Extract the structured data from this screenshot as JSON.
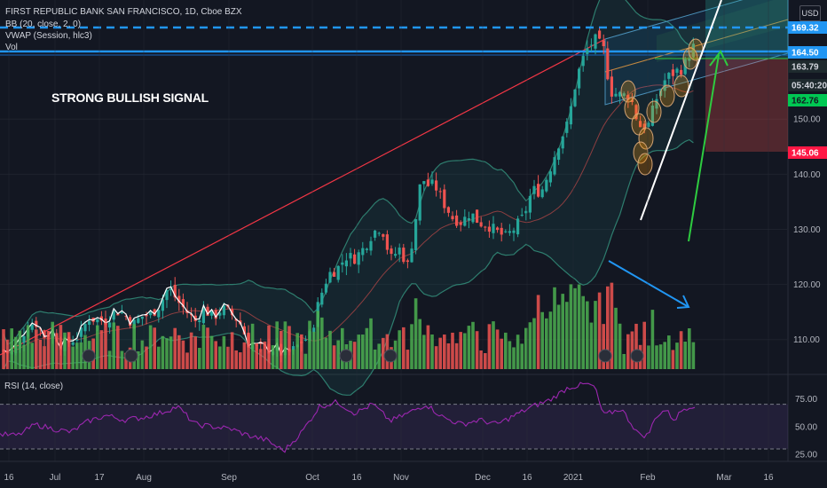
{
  "header": {
    "title": "FIRST REPUBLIC BANK SAN FRANCISCO, 1D, Cboe BZX",
    "bb": "BB (20, close, 2, 0)",
    "vwap": "VWAP (Session, hlc3)",
    "vol": "Vol",
    "currency": "USD"
  },
  "annotation": "STRONG BULLISH SIGNAL",
  "rsi_title": "RSI (14, close)",
  "colors": {
    "background": "#131722",
    "up": "#26a69a",
    "down": "#ef5350",
    "vol_up": "#4caf50",
    "vol_down": "#ef5350",
    "bb_band": "#2e7d6e",
    "rsi": "#9c27b0",
    "blue_line": "#2196f3",
    "green_arrow": "#2ecc40",
    "red_line": "#f23645"
  },
  "chart_data": [
    {
      "type": "candlestick",
      "y_ticks": [
        "110.00",
        "120.00",
        "130.00",
        "140.00",
        "150.00"
      ],
      "ylim": [
        104,
        170
      ],
      "x_labels": [
        "16",
        "Jul",
        "17",
        "Aug",
        "Sep",
        "Oct",
        "16",
        "Nov",
        "Dec",
        "16",
        "2021",
        "Feb",
        "Mar",
        "16"
      ],
      "price_tags": [
        {
          "value": "169.32",
          "style": "blue"
        },
        {
          "value": "164.50",
          "style": "blue"
        },
        {
          "value": "163.79",
          "style": "dark"
        },
        {
          "value": "05:40:20",
          "style": "dark"
        },
        {
          "value": "162.76",
          "style": "green"
        },
        {
          "value": "145.06",
          "style": "red"
        }
      ],
      "closes": [
        {
          "x": 0,
          "y": 108.0
        },
        {
          "x": 10,
          "y": 107.5
        },
        {
          "x": 20,
          "y": 108.8
        },
        {
          "x": 30,
          "y": 112.4
        },
        {
          "x": 40,
          "y": 113.2
        },
        {
          "x": 50,
          "y": 110.6
        },
        {
          "x": 60,
          "y": 111.4
        },
        {
          "x": 70,
          "y": 108.7
        },
        {
          "x": 80,
          "y": 109.8
        },
        {
          "x": 90,
          "y": 110.8
        },
        {
          "x": 100,
          "y": 114.0
        },
        {
          "x": 110,
          "y": 113.5
        },
        {
          "x": 120,
          "y": 113.5
        },
        {
          "x": 130,
          "y": 115.3
        },
        {
          "x": 140,
          "y": 114.7
        },
        {
          "x": 150,
          "y": 112.8
        },
        {
          "x": 160,
          "y": 114.2
        },
        {
          "x": 170,
          "y": 114.5
        },
        {
          "x": 180,
          "y": 116.3
        },
        {
          "x": 190,
          "y": 119.6
        },
        {
          "x": 200,
          "y": 117.0
        },
        {
          "x": 210,
          "y": 115.1
        },
        {
          "x": 220,
          "y": 113.3
        },
        {
          "x": 230,
          "y": 115.7
        },
        {
          "x": 240,
          "y": 113.9
        },
        {
          "x": 250,
          "y": 115.7
        },
        {
          "x": 260,
          "y": 114.7
        },
        {
          "x": 270,
          "y": 113.2
        },
        {
          "x": 280,
          "y": 109.4
        },
        {
          "x": 290,
          "y": 108.4
        },
        {
          "x": 300,
          "y": 108.2
        },
        {
          "x": 310,
          "y": 108.4
        },
        {
          "x": 320,
          "y": 107.1
        },
        {
          "x": 330,
          "y": 108.0
        },
        {
          "x": 340,
          "y": 109.6
        },
        {
          "x": 350,
          "y": 110.8
        },
        {
          "x": 360,
          "y": 117.3
        },
        {
          "x": 370,
          "y": 121.9
        },
        {
          "x": 380,
          "y": 122.8
        },
        {
          "x": 390,
          "y": 125.1
        },
        {
          "x": 400,
          "y": 124.8
        },
        {
          "x": 410,
          "y": 126.6
        },
        {
          "x": 420,
          "y": 129.4
        },
        {
          "x": 430,
          "y": 130.6
        },
        {
          "x": 440,
          "y": 124.5
        },
        {
          "x": 450,
          "y": 126.5
        },
        {
          "x": 460,
          "y": 123.3
        },
        {
          "x": 470,
          "y": 133.5
        },
        {
          "x": 475,
          "y": 140.0
        },
        {
          "x": 480,
          "y": 138.0
        },
        {
          "x": 490,
          "y": 138.0
        },
        {
          "x": 500,
          "y": 134.8
        },
        {
          "x": 510,
          "y": 132.1
        },
        {
          "x": 520,
          "y": 131.3
        },
        {
          "x": 530,
          "y": 133.1
        },
        {
          "x": 540,
          "y": 131.2
        },
        {
          "x": 550,
          "y": 130.8
        },
        {
          "x": 560,
          "y": 129.5
        },
        {
          "x": 570,
          "y": 128.6
        },
        {
          "x": 580,
          "y": 130.2
        },
        {
          "x": 590,
          "y": 132.3
        },
        {
          "x": 600,
          "y": 137.2
        },
        {
          "x": 610,
          "y": 136.8
        },
        {
          "x": 620,
          "y": 141.1
        },
        {
          "x": 630,
          "y": 145.8
        },
        {
          "x": 640,
          "y": 149.2
        },
        {
          "x": 650,
          "y": 157.6
        },
        {
          "x": 660,
          "y": 162.3
        },
        {
          "x": 670,
          "y": 164.5
        },
        {
          "x": 680,
          "y": 162.8
        },
        {
          "x": 688,
          "y": 155.0
        },
        {
          "x": 700,
          "y": 154.3
        },
        {
          "x": 710,
          "y": 154.3
        },
        {
          "x": 720,
          "y": 148.8
        },
        {
          "x": 730,
          "y": 148.6
        },
        {
          "x": 740,
          "y": 153.8
        },
        {
          "x": 750,
          "y": 157.3
        },
        {
          "x": 760,
          "y": 158.5
        },
        {
          "x": 770,
          "y": 159.3
        },
        {
          "x": 780,
          "y": 162.8
        },
        {
          "x": 785,
          "y": 163.8
        }
      ]
    },
    {
      "type": "line",
      "series": [
        {
          "name": "RSI (14, close)"
        }
      ],
      "y_ticks": [
        "75.00",
        "50.00",
        "25.00"
      ],
      "ylim": [
        22,
        92
      ],
      "levels": [
        70,
        30
      ],
      "values": [
        {
          "x": 0,
          "y": 43
        },
        {
          "x": 20,
          "y": 42
        },
        {
          "x": 40,
          "y": 52
        },
        {
          "x": 60,
          "y": 48
        },
        {
          "x": 80,
          "y": 45
        },
        {
          "x": 100,
          "y": 55
        },
        {
          "x": 120,
          "y": 60
        },
        {
          "x": 140,
          "y": 56
        },
        {
          "x": 160,
          "y": 58
        },
        {
          "x": 180,
          "y": 62
        },
        {
          "x": 200,
          "y": 68
        },
        {
          "x": 220,
          "y": 52
        },
        {
          "x": 240,
          "y": 50
        },
        {
          "x": 260,
          "y": 48
        },
        {
          "x": 280,
          "y": 42
        },
        {
          "x": 300,
          "y": 38
        },
        {
          "x": 320,
          "y": 28
        },
        {
          "x": 340,
          "y": 45
        },
        {
          "x": 360,
          "y": 68
        },
        {
          "x": 380,
          "y": 72
        },
        {
          "x": 400,
          "y": 62
        },
        {
          "x": 420,
          "y": 70
        },
        {
          "x": 440,
          "y": 55
        },
        {
          "x": 460,
          "y": 62
        },
        {
          "x": 480,
          "y": 70
        },
        {
          "x": 500,
          "y": 58
        },
        {
          "x": 520,
          "y": 52
        },
        {
          "x": 540,
          "y": 56
        },
        {
          "x": 560,
          "y": 52
        },
        {
          "x": 580,
          "y": 60
        },
        {
          "x": 600,
          "y": 68
        },
        {
          "x": 620,
          "y": 74
        },
        {
          "x": 640,
          "y": 85
        },
        {
          "x": 660,
          "y": 88
        },
        {
          "x": 670,
          "y": 86
        },
        {
          "x": 680,
          "y": 60
        },
        {
          "x": 700,
          "y": 66
        },
        {
          "x": 720,
          "y": 43
        },
        {
          "x": 730,
          "y": 42
        },
        {
          "x": 740,
          "y": 60
        },
        {
          "x": 750,
          "y": 65
        },
        {
          "x": 760,
          "y": 56
        },
        {
          "x": 770,
          "y": 66
        },
        {
          "x": 785,
          "y": 70
        }
      ]
    }
  ]
}
